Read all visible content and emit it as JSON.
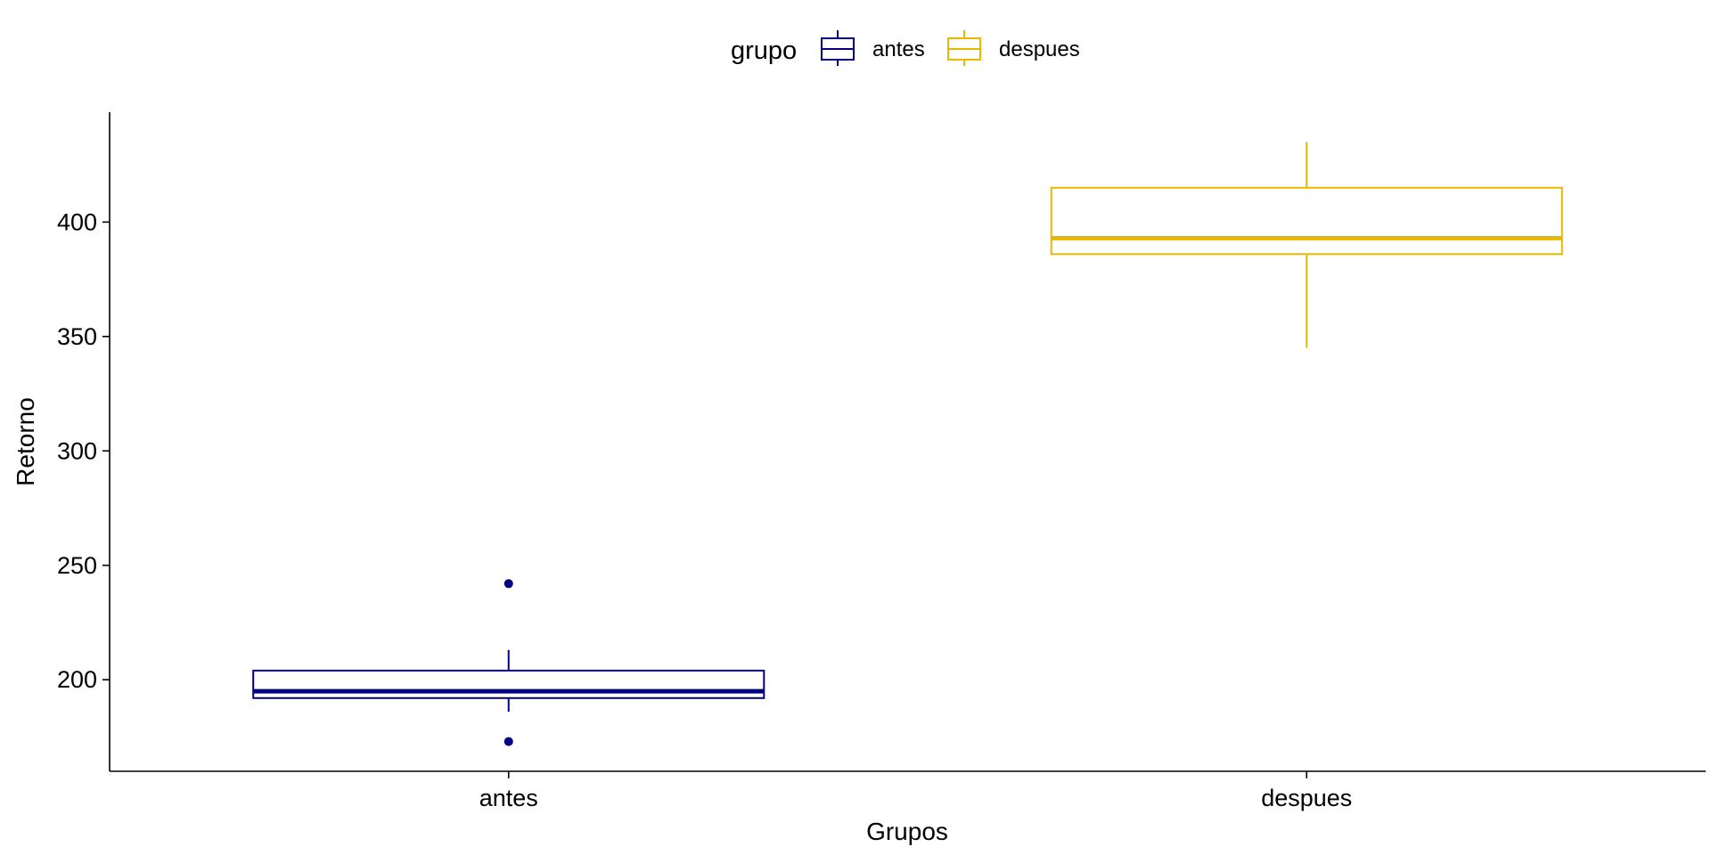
{
  "chart_data": {
    "type": "boxplot",
    "xlabel": "Grupos",
    "ylabel": "Retorno",
    "ylim": [
      160,
      448
    ],
    "yticks": [
      200,
      250,
      300,
      350,
      400
    ],
    "categories": [
      "antes",
      "despues"
    ],
    "grid": false,
    "legend": {
      "title": "grupo",
      "position": "top",
      "entries": [
        "antes",
        "despues"
      ]
    },
    "series": [
      {
        "name": "antes",
        "color": "#000080",
        "whisker_low": 186,
        "q1": 192,
        "median": 195,
        "q3": 204,
        "whisker_high": 213,
        "outliers": [
          242,
          173
        ]
      },
      {
        "name": "despues",
        "color": "#E7B800",
        "whisker_low": 345,
        "q1": 386,
        "median": 393,
        "q3": 415,
        "whisker_high": 435,
        "outliers": []
      }
    ]
  }
}
